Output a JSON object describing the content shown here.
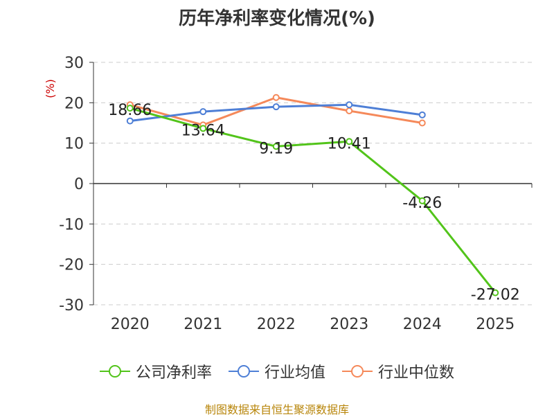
{
  "source": "制图数据来自恒生聚源数据库",
  "chart_data": {
    "type": "line",
    "title": "历年净利率变化情况(%)",
    "ylabel": "(%)",
    "xlabel": "",
    "categories": [
      "2020",
      "2021",
      "2022",
      "2023",
      "2024",
      "2025"
    ],
    "ylim": [
      -30,
      30
    ],
    "yticks": [
      30,
      20,
      10,
      0,
      -10,
      -20,
      -30
    ],
    "grid": true,
    "legend_position": "bottom",
    "series": [
      {
        "name": "公司净利率",
        "color": "#52c41a",
        "values": [
          18.66,
          13.64,
          9.19,
          10.41,
          -4.26,
          -27.02
        ],
        "labels": [
          "18.66",
          "13.64",
          "9.19",
          "10.41",
          "-4.26",
          "-27.02"
        ]
      },
      {
        "name": "行业均值",
        "color": "#4e7fd6",
        "values": [
          15.5,
          17.8,
          19.0,
          19.5,
          17.0,
          null
        ]
      },
      {
        "name": "行业中位数",
        "color": "#f5895a",
        "values": [
          19.5,
          14.5,
          21.3,
          18.0,
          15.0,
          null
        ]
      }
    ]
  }
}
